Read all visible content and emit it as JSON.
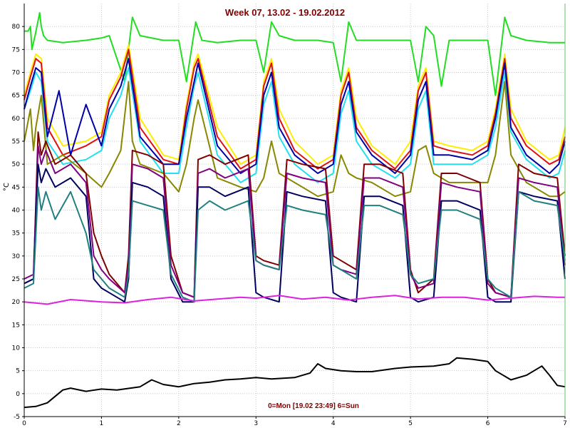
{
  "chart_data": {
    "type": "line",
    "title": "Week 07, 13.02 - 19.02.2012",
    "xlabel": "0=Mon [19.02 23:49] 6=Sun",
    "ylabel": "°C",
    "xlim": [
      0,
      7
    ],
    "ylim": [
      -5,
      85
    ],
    "x_ticks": [
      0,
      1,
      2,
      3,
      4,
      5,
      6,
      7
    ],
    "y_ticks": [
      -5,
      0,
      5,
      10,
      15,
      20,
      25,
      30,
      35,
      40,
      45,
      50,
      55,
      60,
      65,
      70,
      75,
      80
    ],
    "grid": true,
    "title_color": "#800000",
    "series": [
      {
        "color": "#22dd22",
        "x": [
          0,
          0.05,
          0.08,
          0.1,
          0.14,
          0.2,
          0.22,
          0.25,
          0.3,
          0.5,
          0.8,
          1.0,
          1.1,
          1.3,
          1.35,
          1.4,
          1.5,
          1.8,
          2.0,
          2.1,
          2.22,
          2.3,
          2.5,
          2.8,
          3.0,
          3.1,
          3.2,
          3.3,
          3.5,
          3.8,
          4.0,
          4.1,
          4.2,
          4.3,
          4.5,
          4.8,
          5.0,
          5.1,
          5.2,
          5.3,
          5.4,
          5.5,
          5.8,
          6.0,
          6.1,
          6.22,
          6.3,
          6.5,
          6.8,
          7.0
        ],
        "y": [
          79,
          79,
          80,
          75,
          78,
          83,
          80,
          78,
          77,
          76.5,
          77,
          77.5,
          78,
          68,
          75,
          82,
          78,
          77,
          77,
          68,
          81,
          77,
          76.5,
          77,
          77,
          70,
          81,
          78,
          77,
          77,
          76.5,
          68,
          81,
          77,
          77,
          77,
          77,
          68,
          80,
          78,
          67,
          77,
          77,
          77,
          65,
          82,
          78,
          77,
          76.5,
          76.5
        ]
      },
      {
        "color": "#ffee00",
        "x": [
          0,
          0.08,
          0.15,
          0.22,
          0.3,
          0.5,
          0.8,
          1.0,
          1.1,
          1.25,
          1.35,
          1.5,
          1.8,
          2.0,
          2.1,
          2.2,
          2.25,
          2.5,
          2.8,
          3.0,
          3.1,
          3.2,
          3.3,
          3.5,
          3.8,
          4.0,
          4.1,
          4.2,
          4.3,
          4.5,
          4.8,
          5.0,
          5.1,
          5.2,
          5.3,
          5.5,
          5.8,
          6.0,
          6.1,
          6.22,
          6.3,
          6.5,
          6.8,
          6.92,
          7.0
        ],
        "y": [
          65,
          70,
          74,
          73,
          60,
          54,
          55,
          57,
          65,
          70,
          76,
          60,
          52,
          51,
          63,
          72,
          74,
          58,
          50,
          52,
          68,
          73,
          62,
          55,
          50,
          52,
          66,
          71,
          60,
          54,
          50,
          55,
          67,
          71,
          55,
          54,
          53,
          55,
          62,
          74,
          62,
          55,
          51,
          52,
          58
        ]
      },
      {
        "color": "#dd1111",
        "x": [
          0,
          0.08,
          0.15,
          0.22,
          0.3,
          0.5,
          0.8,
          1.0,
          1.1,
          1.25,
          1.35,
          1.5,
          1.8,
          2.0,
          2.1,
          2.2,
          2.25,
          2.5,
          2.8,
          3.0,
          3.1,
          3.2,
          3.3,
          3.5,
          3.8,
          4.0,
          4.1,
          4.2,
          4.3,
          4.5,
          4.8,
          5.0,
          5.1,
          5.2,
          5.3,
          5.5,
          5.8,
          6.0,
          6.1,
          6.22,
          6.3,
          6.5,
          6.8,
          6.92,
          7.0
        ],
        "y": [
          64,
          69,
          73,
          72,
          58,
          52,
          54,
          56,
          64,
          69,
          75,
          58,
          51,
          50,
          62,
          71,
          73,
          56,
          49,
          51,
          67,
          72,
          60,
          53,
          49,
          51,
          65,
          70,
          58,
          53,
          49,
          53,
          66,
          70,
          54,
          53,
          52,
          54,
          61,
          73,
          60,
          54,
          50,
          51,
          56
        ]
      },
      {
        "color": "#22e0f0",
        "x": [
          0,
          0.08,
          0.15,
          0.22,
          0.3,
          0.5,
          0.8,
          1.0,
          1.1,
          1.25,
          1.35,
          1.5,
          1.8,
          2.0,
          2.1,
          2.2,
          2.25,
          2.5,
          2.8,
          3.0,
          3.1,
          3.2,
          3.3,
          3.5,
          3.8,
          4.0,
          4.1,
          4.2,
          4.3,
          4.5,
          4.8,
          5.0,
          5.1,
          5.2,
          5.3,
          5.5,
          5.8,
          6.0,
          6.1,
          6.22,
          6.3,
          6.5,
          6.8,
          6.92,
          7.0
        ],
        "y": [
          62,
          66,
          70,
          68,
          55,
          50,
          51,
          53,
          60,
          65,
          71,
          55,
          48,
          48,
          58,
          67,
          70,
          52,
          46,
          48,
          63,
          68,
          56,
          50,
          46,
          48,
          61,
          66,
          55,
          50,
          47,
          50,
          62,
          66,
          50,
          50,
          50,
          52,
          58,
          70,
          57,
          51,
          47,
          48,
          53
        ]
      },
      {
        "color": "#0000aa",
        "x": [
          0,
          0.08,
          0.15,
          0.22,
          0.3,
          0.45,
          0.6,
          0.8,
          1.0,
          1.1,
          1.25,
          1.35,
          1.5,
          1.8,
          2.0,
          2.1,
          2.2,
          2.25,
          2.5,
          2.8,
          3.0,
          3.1,
          3.2,
          3.3,
          3.5,
          3.8,
          4.0,
          4.1,
          4.2,
          4.3,
          4.5,
          4.8,
          5.0,
          5.1,
          5.2,
          5.3,
          5.5,
          5.8,
          6.0,
          6.1,
          6.22,
          6.3,
          6.5,
          6.8,
          6.92,
          7.0
        ],
        "y": [
          62,
          67,
          71,
          70,
          56,
          66,
          52,
          63,
          54,
          62,
          67,
          73,
          56,
          50,
          50,
          60,
          68,
          72,
          54,
          48,
          50,
          65,
          70,
          58,
          52,
          48,
          50,
          63,
          68,
          57,
          52,
          48,
          52,
          64,
          68,
          52,
          52,
          51,
          53,
          60,
          72,
          58,
          52,
          48,
          50,
          55
        ]
      },
      {
        "color": "#888800",
        "x": [
          0,
          0.08,
          0.12,
          0.15,
          0.22,
          0.3,
          0.5,
          0.8,
          1.0,
          1.1,
          1.25,
          1.35,
          1.4,
          1.5,
          1.8,
          2.0,
          2.1,
          2.2,
          2.25,
          2.5,
          2.8,
          3.0,
          3.1,
          3.2,
          3.3,
          3.5,
          3.8,
          4.0,
          4.1,
          4.2,
          4.3,
          4.5,
          4.8,
          5.0,
          5.1,
          5.2,
          5.3,
          5.5,
          5.8,
          6.0,
          6.1,
          6.22,
          6.3,
          6.5,
          6.8,
          6.92,
          7.0
        ],
        "y": [
          55,
          62,
          53,
          58,
          65,
          50,
          52,
          48,
          45,
          48,
          53,
          68,
          55,
          50,
          48,
          44,
          50,
          60,
          64,
          47,
          45,
          44,
          47,
          55,
          48,
          46,
          43,
          44,
          52,
          48,
          47,
          46,
          43,
          44,
          53,
          54,
          48,
          46,
          46,
          46,
          52,
          68,
          52,
          46,
          43,
          43,
          44
        ]
      },
      {
        "color": "#800000",
        "x": [
          0,
          0.12,
          0.18,
          0.22,
          0.28,
          0.4,
          0.6,
          0.8,
          0.9,
          1.0,
          1.1,
          1.3,
          1.35,
          1.4,
          1.6,
          1.8,
          1.9,
          2.05,
          2.2,
          2.25,
          2.4,
          2.6,
          2.9,
          3.0,
          3.1,
          3.3,
          3.4,
          3.6,
          3.9,
          4.0,
          4.1,
          4.3,
          4.4,
          4.6,
          4.9,
          5.0,
          5.1,
          5.3,
          5.4,
          5.6,
          5.9,
          6.0,
          6.1,
          6.3,
          6.4,
          6.6,
          6.9,
          7.0
        ],
        "y": [
          24,
          25,
          57,
          52,
          55,
          50,
          52,
          48,
          35,
          30,
          26,
          22,
          30,
          53,
          52,
          50,
          30,
          22,
          21,
          51,
          52,
          50,
          52,
          30,
          29,
          28,
          51,
          50,
          49,
          30,
          29,
          27,
          50,
          50,
          48,
          27,
          22,
          25,
          48,
          48,
          46,
          25,
          22,
          21,
          50,
          48,
          47,
          30
        ]
      },
      {
        "color": "#800080",
        "x": [
          0,
          0.12,
          0.18,
          0.22,
          0.28,
          0.4,
          0.6,
          0.8,
          0.9,
          1.0,
          1.1,
          1.3,
          1.35,
          1.4,
          1.6,
          1.8,
          1.9,
          2.05,
          2.2,
          2.25,
          2.4,
          2.6,
          2.9,
          3.0,
          3.1,
          3.3,
          3.4,
          3.6,
          3.9,
          4.0,
          4.1,
          4.3,
          4.4,
          4.6,
          4.9,
          5.0,
          5.1,
          5.3,
          5.4,
          5.6,
          5.9,
          6.0,
          6.1,
          6.3,
          6.4,
          6.6,
          6.9,
          7.0
        ],
        "y": [
          25,
          26,
          54,
          50,
          53,
          48,
          50,
          46,
          30,
          27,
          25,
          22,
          28,
          50,
          49,
          47,
          28,
          22,
          21,
          48,
          49,
          47,
          49,
          29,
          28,
          27,
          48,
          47,
          46,
          28,
          27,
          26,
          47,
          47,
          45,
          26,
          23,
          24,
          46,
          45,
          44,
          24,
          22,
          21,
          47,
          46,
          45,
          28
        ]
      },
      {
        "color": "#000060",
        "x": [
          0,
          0.12,
          0.18,
          0.22,
          0.28,
          0.4,
          0.6,
          0.8,
          0.9,
          1.0,
          1.1,
          1.3,
          1.35,
          1.4,
          1.6,
          1.8,
          1.9,
          2.05,
          2.2,
          2.25,
          2.4,
          2.6,
          2.9,
          3.0,
          3.1,
          3.3,
          3.4,
          3.6,
          3.9,
          4.0,
          4.1,
          4.3,
          4.4,
          4.6,
          4.9,
          5.0,
          5.1,
          5.3,
          5.4,
          5.6,
          5.9,
          6.0,
          6.1,
          6.3,
          6.4,
          6.6,
          6.9,
          7.0
        ],
        "y": [
          24,
          25,
          50,
          46,
          49,
          45,
          47,
          43,
          25,
          23,
          22,
          20,
          25,
          46,
          45,
          43,
          25,
          20,
          20,
          45,
          45,
          43,
          45,
          22,
          21,
          20,
          44,
          43,
          42,
          22,
          21,
          20,
          43,
          43,
          41,
          21,
          20,
          21,
          42,
          42,
          40,
          21,
          20,
          20,
          44,
          43,
          42,
          25
        ]
      },
      {
        "color": "#208080",
        "x": [
          0,
          0.12,
          0.18,
          0.22,
          0.28,
          0.4,
          0.6,
          0.8,
          0.9,
          1.0,
          1.1,
          1.3,
          1.35,
          1.4,
          1.6,
          1.8,
          1.9,
          2.05,
          2.2,
          2.25,
          2.4,
          2.6,
          2.9,
          3.0,
          3.1,
          3.3,
          3.4,
          3.6,
          3.9,
          4.0,
          4.1,
          4.3,
          4.4,
          4.6,
          4.9,
          5.0,
          5.1,
          5.3,
          5.4,
          5.6,
          5.9,
          6.0,
          6.1,
          6.3,
          6.4,
          6.6,
          6.9,
          7.0
        ],
        "y": [
          23,
          24,
          45,
          40,
          44,
          38,
          44,
          35,
          27,
          25,
          23,
          21,
          26,
          42,
          41,
          40,
          26,
          21,
          20,
          40,
          42,
          40,
          42,
          29,
          28,
          27,
          41,
          40,
          39,
          28,
          27,
          25,
          41,
          41,
          39,
          26,
          24,
          25,
          40,
          40,
          38,
          25,
          23,
          21,
          44,
          42,
          41,
          29
        ]
      },
      {
        "color": "#dd22dd",
        "x": [
          0,
          0.3,
          0.6,
          1.0,
          1.3,
          1.6,
          1.9,
          2.2,
          2.5,
          2.8,
          3.0,
          3.3,
          3.6,
          3.9,
          4.2,
          4.5,
          4.8,
          5.1,
          5.4,
          5.7,
          6.0,
          6.3,
          6.6,
          6.9,
          7.0
        ],
        "y": [
          20,
          19.5,
          20.5,
          20,
          19.8,
          20.5,
          21,
          20.2,
          20.6,
          21,
          20.8,
          21.4,
          20.6,
          21,
          20.4,
          21,
          21.4,
          20.6,
          21,
          21,
          20.4,
          20.8,
          21.2,
          21,
          21
        ]
      },
      {
        "color": "#000000",
        "x": [
          0,
          0.15,
          0.3,
          0.5,
          0.6,
          0.8,
          1.0,
          1.2,
          1.5,
          1.65,
          1.8,
          2.0,
          2.2,
          2.4,
          2.6,
          2.8,
          3.0,
          3.2,
          3.5,
          3.7,
          3.8,
          3.9,
          4.1,
          4.3,
          4.5,
          4.8,
          5.0,
          5.3,
          5.5,
          5.6,
          5.8,
          6.0,
          6.1,
          6.3,
          6.5,
          6.6,
          6.7,
          6.8,
          6.9,
          7.0
        ],
        "y": [
          -3,
          -2.8,
          -2,
          0.8,
          1.2,
          0.5,
          1,
          0.8,
          1.5,
          3,
          2,
          1.5,
          2.2,
          2.5,
          3,
          3.2,
          3.5,
          3.2,
          3.5,
          4.5,
          6.5,
          5.5,
          5,
          4.8,
          4.8,
          5.5,
          5.8,
          6,
          6.5,
          7.8,
          7.5,
          7,
          5,
          3,
          4,
          5,
          6,
          4,
          1.8,
          1.5
        ]
      }
    ]
  }
}
